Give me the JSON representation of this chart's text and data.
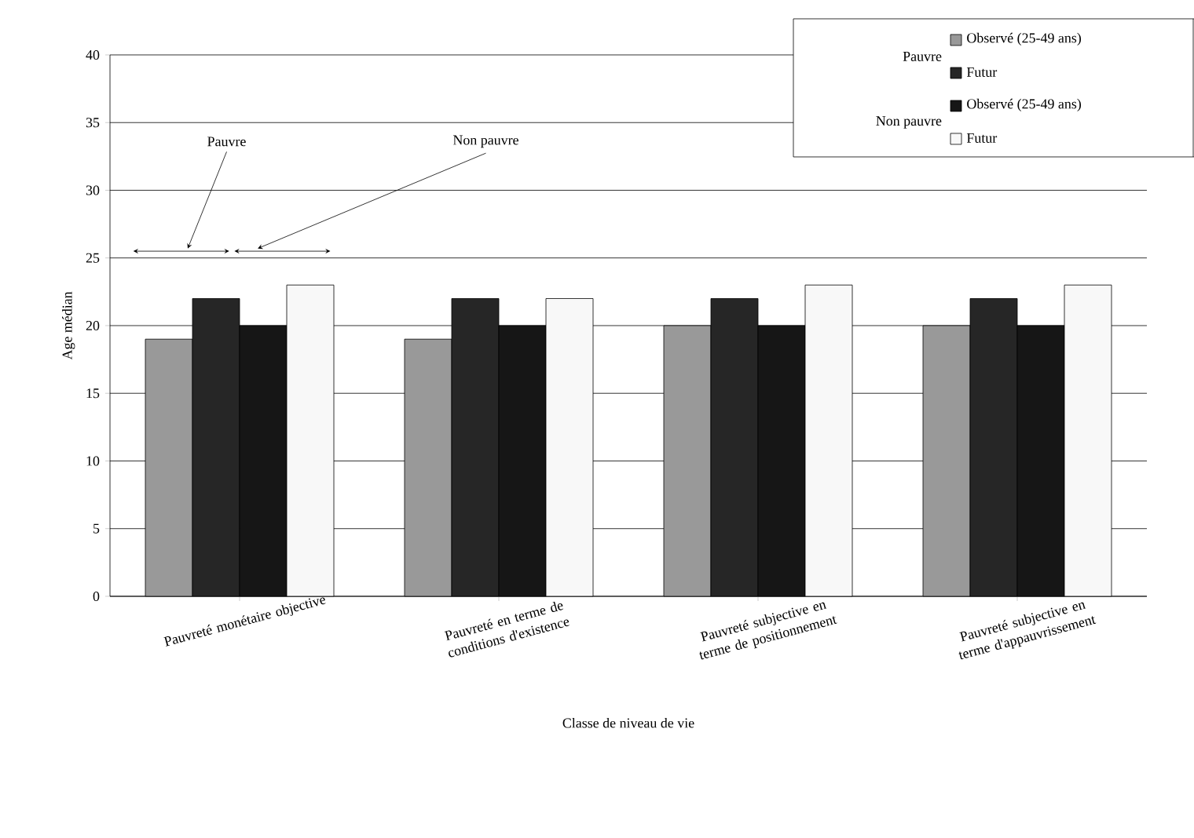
{
  "chart_data": {
    "type": "bar",
    "xlabel": "Classe de niveau de vie",
    "ylabel": "Age médian",
    "categories": [
      "Pauvreté monétaire objective",
      "Pauvreté en terme de conditions d'existence",
      "Pauvreté subjective en terme de positionnement",
      "Pauvreté subjective en terme d'appauvrissement"
    ],
    "series": [
      {
        "name": "Observé (25-49 ans)",
        "color": "#999999",
        "values": [
          19,
          19,
          20,
          20
        ]
      },
      {
        "name": "Futur",
        "color": "#262626",
        "values": [
          22,
          22,
          22,
          22
        ]
      },
      {
        "name": "Observé (25-49 ans)",
        "color": "#161616",
        "values": [
          20,
          20,
          20,
          20
        ]
      },
      {
        "name": "Futur",
        "color": "#f8f8f8",
        "values": [
          23,
          22,
          23,
          23
        ]
      }
    ],
    "ylim": [
      0,
      40
    ],
    "yticks": [
      0,
      5,
      10,
      15,
      20,
      25,
      30,
      35,
      40
    ],
    "grid": "y",
    "legend": "top right",
    "annotations": [
      "Pauvre",
      "Non pauvre",
      "Pauvre",
      "Non pauvre"
    ]
  }
}
